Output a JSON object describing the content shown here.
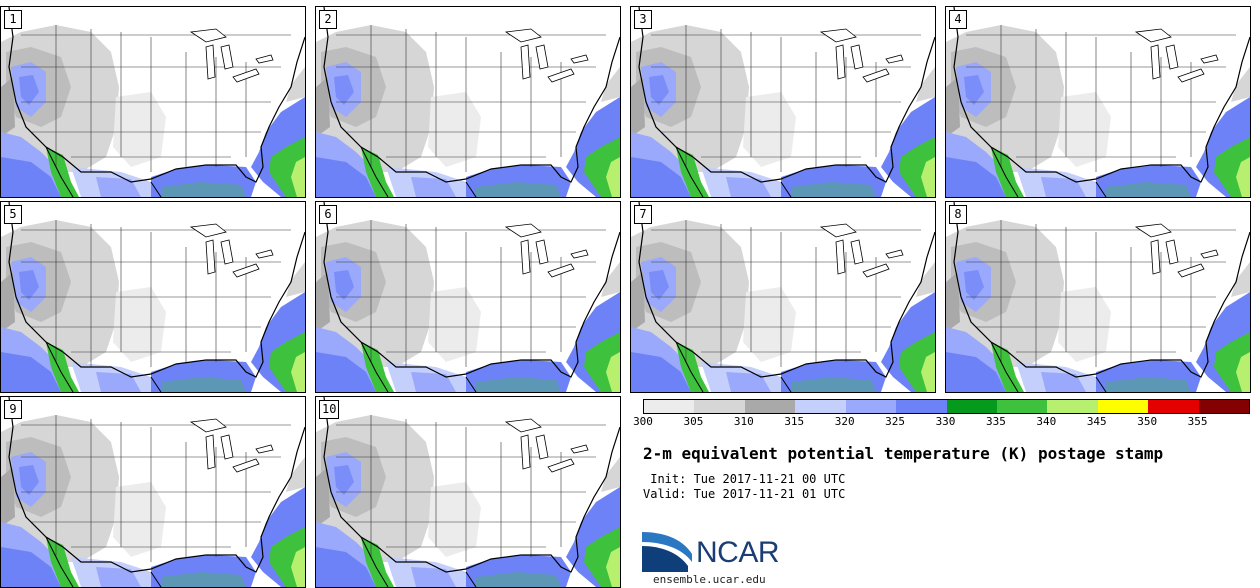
{
  "panels": [
    {
      "label": "1"
    },
    {
      "label": "2"
    },
    {
      "label": "3"
    },
    {
      "label": "4"
    },
    {
      "label": "5"
    },
    {
      "label": "6"
    },
    {
      "label": "7"
    },
    {
      "label": "8"
    },
    {
      "label": "9"
    },
    {
      "label": "10"
    }
  ],
  "colorbar": {
    "ticks": [
      "300",
      "305",
      "310",
      "315",
      "320",
      "325",
      "330",
      "335",
      "340",
      "345",
      "350",
      "355"
    ],
    "colors": [
      "#ececec",
      "#d6d6d6",
      "#a9a9a9",
      "#c4cffc",
      "#9aa9fb",
      "#6e82f7",
      "#069a1c",
      "#3ec13c",
      "#b7ef6e",
      "#fffe00",
      "#e50000",
      "#850000"
    ]
  },
  "title": "2-m equivalent potential temperature (K) postage stamp",
  "init_line": " Init: Tue 2017-11-21 00 UTC",
  "valid_line": "Valid: Tue 2017-11-21 01 UTC",
  "logo_text": "NCAR",
  "site": "ensemble.ucar.edu"
}
